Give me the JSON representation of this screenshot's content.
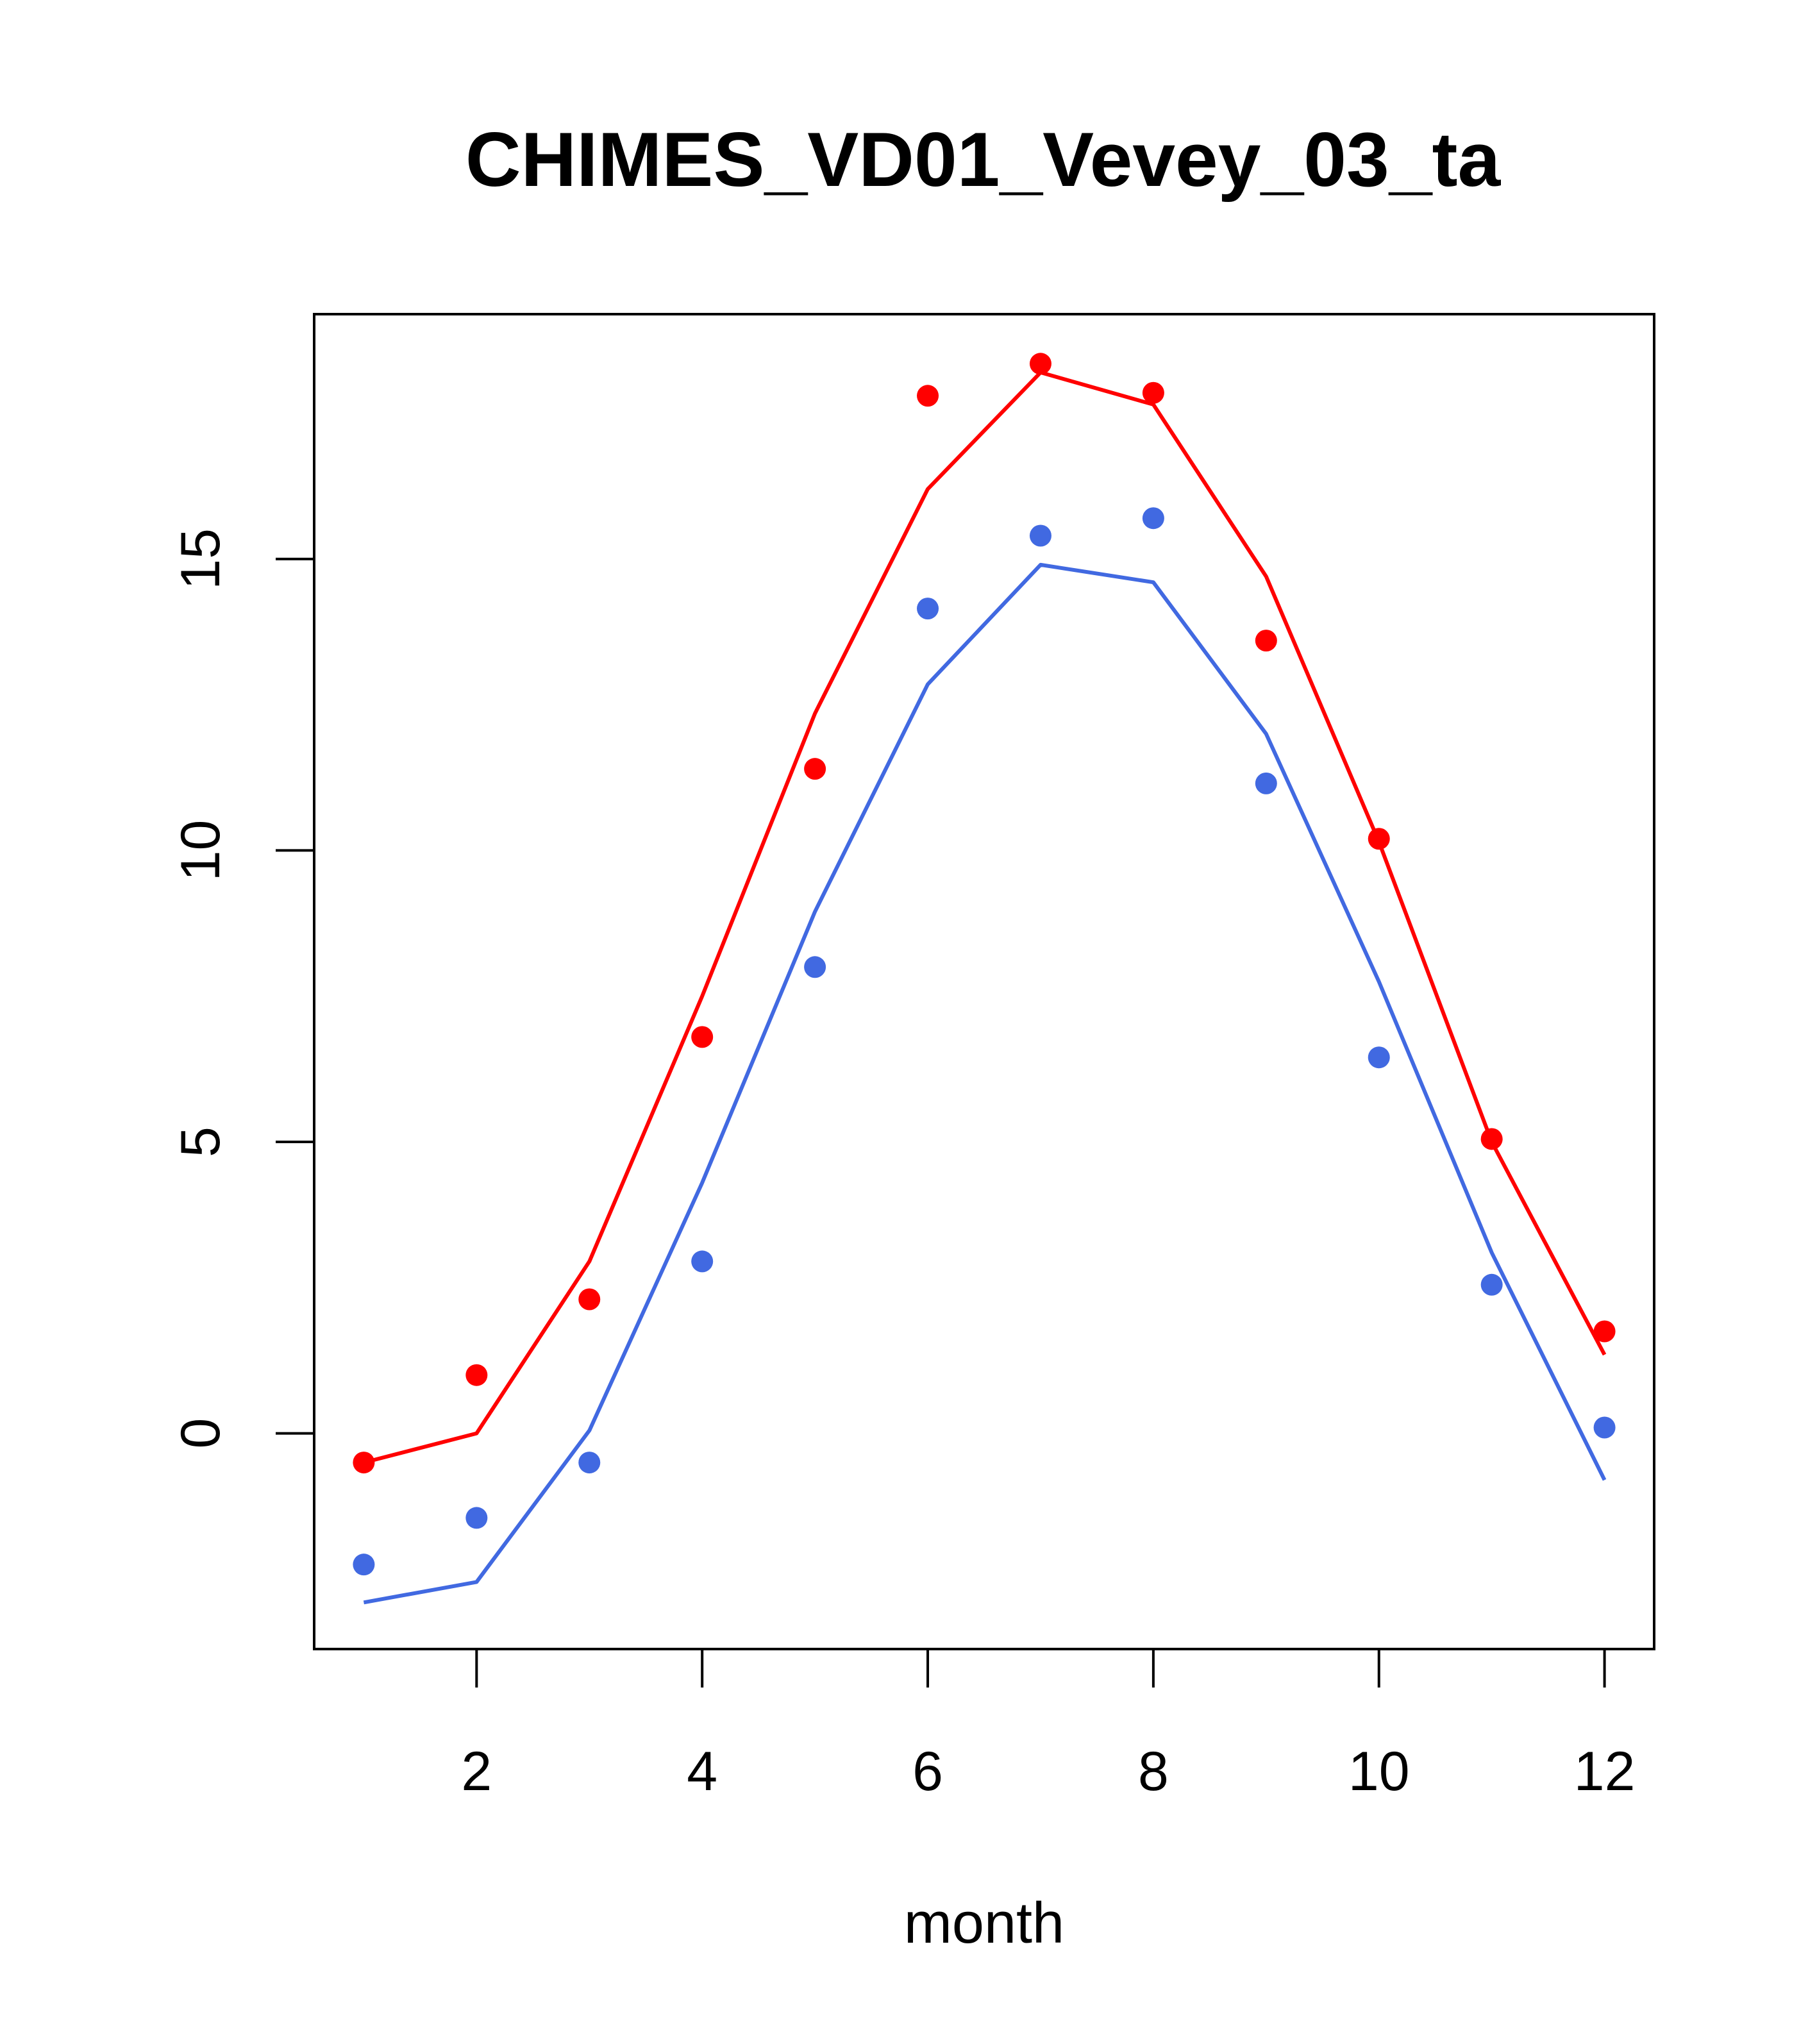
{
  "chart_data": {
    "type": "line",
    "title": "CHIMES_VD01_Vevey_03_ta",
    "xlabel": "month",
    "ylabel": "",
    "xlim": [
      0.56,
      12.44
    ],
    "ylim": [
      -3.7,
      19.2
    ],
    "x_ticks": [
      2,
      4,
      6,
      8,
      10,
      12
    ],
    "y_ticks": [
      0,
      5,
      10,
      15
    ],
    "grid": false,
    "x": [
      1,
      2,
      3,
      4,
      5,
      6,
      7,
      8,
      9,
      10,
      11,
      12
    ],
    "series": [
      {
        "color": "#ff0000",
        "line": [
          -0.5,
          0.0,
          2.95,
          7.5,
          12.35,
          16.2,
          18.2,
          17.65,
          14.7,
          10.15,
          5.0,
          1.35
        ],
        "points": [
          -0.5,
          1.0,
          2.3,
          6.8,
          11.4,
          17.8,
          18.35,
          17.85,
          13.6,
          10.2,
          5.05,
          1.75
        ]
      },
      {
        "color": "#4169e1",
        "line": [
          -2.9,
          -2.55,
          0.05,
          4.3,
          8.95,
          12.85,
          14.9,
          14.6,
          12.0,
          7.75,
          3.1,
          -0.8
        ],
        "points": [
          -2.25,
          -1.45,
          -0.5,
          2.95,
          8.0,
          14.15,
          15.4,
          15.7,
          11.15,
          6.45,
          2.55,
          0.1
        ]
      }
    ]
  }
}
